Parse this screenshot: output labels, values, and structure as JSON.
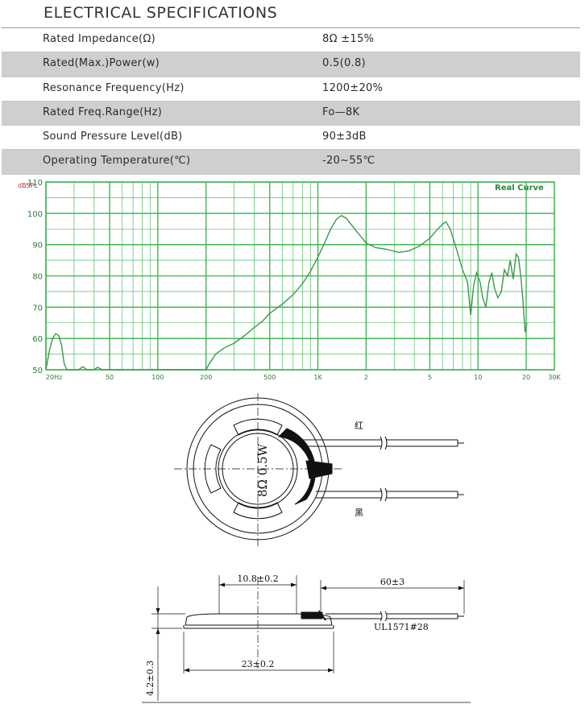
{
  "specs": {
    "title": "ELECTRICAL SPECIFICATIONS",
    "rows": [
      {
        "label": "Rated  Impedance(Ω)",
        "value": "8Ω ±15%"
      },
      {
        "label": "Rated(Max.)Power(w)",
        "value": "0.5(0.8)"
      },
      {
        "label": "Resonance  Frequency(Hz)",
        "value": "1200±20%"
      },
      {
        "label": "Rated  Freq.Range(Hz)",
        "value": "Fo—8K"
      },
      {
        "label": "Sound  Pressure  Level(dB)",
        "value": "90±3dB"
      },
      {
        "label": "Operating  Temperature(℃)",
        "value": "-20~55℃"
      }
    ]
  },
  "chart_data": {
    "type": "line",
    "title": "Real Curve",
    "xlabel": "",
    "ylabel": "dBSPL",
    "x_scale": "log",
    "xlim": [
      20,
      30000
    ],
    "ylim": [
      50,
      110
    ],
    "grid": true,
    "y_ticks": [
      "50",
      "60",
      "70",
      "80",
      "90",
      "100",
      "110"
    ],
    "x_ticks": [
      {
        "f": 20,
        "label": "20Hz"
      },
      {
        "f": 50,
        "label": "50"
      },
      {
        "f": 100,
        "label": "100"
      },
      {
        "f": 200,
        "label": "200"
      },
      {
        "f": 500,
        "label": "500"
      },
      {
        "f": 1000,
        "label": "1K"
      },
      {
        "f": 2000,
        "label": "2"
      },
      {
        "f": 5000,
        "label": "5"
      },
      {
        "f": 10000,
        "label": "10"
      },
      {
        "f": 20000,
        "label": "20"
      },
      {
        "f": 30000,
        "label": "30K"
      }
    ],
    "series": [
      {
        "color": "#3a9a4a",
        "points": [
          [
            20,
            50
          ],
          [
            21,
            56
          ],
          [
            22,
            60
          ],
          [
            23,
            61.5
          ],
          [
            24,
            61
          ],
          [
            25,
            58
          ],
          [
            26,
            52
          ],
          [
            27,
            50
          ],
          [
            32,
            50
          ],
          [
            34,
            51
          ],
          [
            36,
            50
          ],
          [
            40,
            50
          ],
          [
            42,
            50.8
          ],
          [
            45,
            50
          ],
          [
            200,
            50
          ],
          [
            210,
            52
          ],
          [
            230,
            55
          ],
          [
            260,
            57
          ],
          [
            300,
            58.5
          ],
          [
            350,
            61
          ],
          [
            400,
            63.5
          ],
          [
            450,
            65.5
          ],
          [
            500,
            68
          ],
          [
            600,
            71
          ],
          [
            700,
            74
          ],
          [
            800,
            77.5
          ],
          [
            900,
            81.5
          ],
          [
            1000,
            86
          ],
          [
            1100,
            90.5
          ],
          [
            1200,
            95
          ],
          [
            1300,
            98
          ],
          [
            1400,
            99.3
          ],
          [
            1500,
            98.5
          ],
          [
            1700,
            95
          ],
          [
            2000,
            90.5
          ],
          [
            2300,
            89
          ],
          [
            2700,
            88.5
          ],
          [
            3200,
            87.5
          ],
          [
            3700,
            88
          ],
          [
            4300,
            89.5
          ],
          [
            5000,
            92
          ],
          [
            5500,
            94.5
          ],
          [
            6000,
            96.5
          ],
          [
            6300,
            97.3
          ],
          [
            6700,
            95
          ],
          [
            7200,
            90
          ],
          [
            8000,
            82
          ],
          [
            8600,
            78
          ],
          [
            9000,
            67.5
          ],
          [
            9400,
            77
          ],
          [
            9800,
            81
          ],
          [
            10300,
            78
          ],
          [
            10700,
            73
          ],
          [
            11200,
            70
          ],
          [
            11700,
            78
          ],
          [
            12200,
            81
          ],
          [
            12700,
            76
          ],
          [
            13300,
            73
          ],
          [
            14000,
            75
          ],
          [
            14600,
            82
          ],
          [
            15300,
            80
          ],
          [
            15900,
            85
          ],
          [
            16600,
            79
          ],
          [
            17300,
            87
          ],
          [
            17900,
            86
          ],
          [
            18500,
            80
          ],
          [
            19100,
            72
          ],
          [
            19700,
            62
          ],
          [
            20200,
            65
          ]
        ]
      }
    ]
  },
  "drawing": {
    "label_red": "红",
    "label_black": "黑",
    "marking": "8Ω 0.5W",
    "dim_inner": "10.8±0.2",
    "dim_lead": "60±3",
    "dim_wire": "UL1571#28",
    "dim_diameter": "23±0.2",
    "dim_height": "4.2±0.3"
  }
}
